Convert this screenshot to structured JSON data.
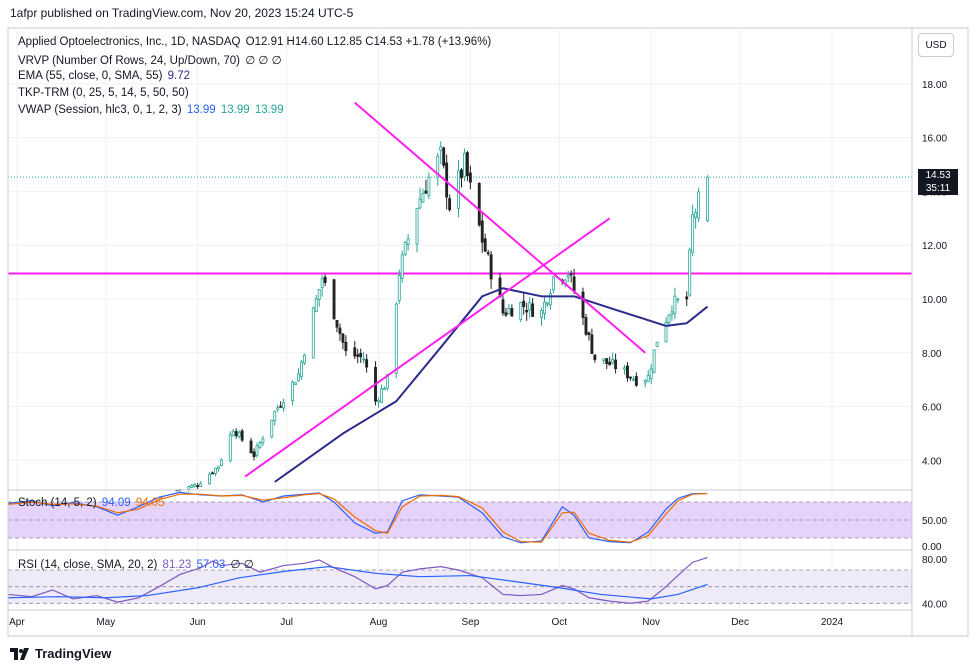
{
  "header": {
    "published": "1afpr published on TradingView.com, Nov 20, 2023 15:24 UTC-5"
  },
  "legend": {
    "line1_name": "Applied Optoelectronics, Inc., 1D, NASDAQ",
    "line1_values": "O12.91  H14.60  L12.85  C14.53  +1.78 (+13.96%)",
    "line2": "VRVP (Number Of Rows, 24, Up/Down, 70)",
    "line3_name": "EMA (55, close, 0, SMA, 55)",
    "line3_value": "9.72",
    "line4": "TKP-TRM  (0, 25, 5, 14, 5, 50, 50)",
    "line5_name": "VWAP (Session, hlc3, 0, 1, 2, 3)",
    "line5_v1": "13.99",
    "line5_v2": "13.99",
    "line5_v3": "13.99",
    "hidden_marks": "∅ ∅ ∅"
  },
  "stoch_legend": {
    "name": "Stoch (14, 5, 2)",
    "k": "94.09",
    "d": "94.05"
  },
  "rsi_legend": {
    "name": "RSI (14, close, SMA, 20, 2)",
    "rsi": "81.23",
    "ma": "57.03",
    "marks": "∅ ∅"
  },
  "currency": "USD",
  "last_price": {
    "price": "14.53",
    "countdown": "35:11"
  },
  "footer": {
    "brand": "TradingView",
    "logo_icon": "tradingview-logo-icon"
  },
  "colors": {
    "up": "#26a69a",
    "down": "#222222",
    "trend": "#ff1ff0",
    "ema": "#2c2c8c",
    "stoch_k": "#2962ff",
    "stoch_d": "#ef6c00",
    "rsi": "#7e57c2",
    "rsi_ma": "#2962ff",
    "stoch_band": "#e6d3fb",
    "rsi_band": "#efeaf7"
  },
  "chart_data": [
    {
      "type": "candlestick",
      "title": "Applied Optoelectronics, Inc., 1D, NASDAQ",
      "ylim": [
        2.9,
        20.0
      ],
      "y_ticks": [
        "4.00",
        "6.00",
        "8.00",
        "10.00",
        "12.00",
        "14.00",
        "16.00",
        "18.00"
      ],
      "x_ticks": [
        "Apr",
        "May",
        "Jun",
        "Jul",
        "Aug",
        "Sep",
        "Oct",
        "Nov",
        "Dec",
        "2024"
      ],
      "x_tick_dates": [
        "2023-04-01",
        "2023-05-01",
        "2023-06-01",
        "2023-07-01",
        "2023-08-01",
        "2023-09-01",
        "2023-10-01",
        "2023-11-01",
        "2023-12-01",
        "2024-01-01"
      ],
      "x_range": [
        "2023-03-29",
        "2024-01-28"
      ],
      "close_anchors": [
        [
          "2023-05-25",
          2.9
        ],
        [
          "2023-06-01",
          3.1
        ],
        [
          "2023-06-08",
          3.8
        ],
        [
          "2023-06-13",
          5.2
        ],
        [
          "2023-06-20",
          4.2
        ],
        [
          "2023-06-27",
          5.8
        ],
        [
          "2023-07-05",
          7.2
        ],
        [
          "2023-07-10",
          9.5
        ],
        [
          "2023-07-13",
          10.8
        ],
        [
          "2023-07-17",
          9.5
        ],
        [
          "2023-07-21",
          8.0
        ],
        [
          "2023-07-27",
          7.8
        ],
        [
          "2023-07-31",
          6.2
        ],
        [
          "2023-08-04",
          7.0
        ],
        [
          "2023-08-08",
          11.0
        ],
        [
          "2023-08-14",
          13.5
        ],
        [
          "2023-08-18",
          14.5
        ],
        [
          "2023-08-22",
          15.3
        ],
        [
          "2023-08-25",
          13.5
        ],
        [
          "2023-08-30",
          15.0
        ],
        [
          "2023-09-05",
          12.2
        ],
        [
          "2023-09-12",
          9.5
        ],
        [
          "2023-09-18",
          9.8
        ],
        [
          "2023-09-25",
          9.5
        ],
        [
          "2023-09-29",
          10.8
        ],
        [
          "2023-10-04",
          11.0
        ],
        [
          "2023-10-10",
          8.9
        ],
        [
          "2023-10-13",
          7.8
        ],
        [
          "2023-10-20",
          7.5
        ],
        [
          "2023-10-27",
          7.0
        ],
        [
          "2023-10-31",
          7.1
        ],
        [
          "2023-11-03",
          8.5
        ],
        [
          "2023-11-08",
          9.8
        ],
        [
          "2023-11-13",
          10.0
        ],
        [
          "2023-11-15",
          13.0
        ],
        [
          "2023-11-20",
          14.53
        ]
      ],
      "last_ohlc": {
        "open": 12.91,
        "high": 14.6,
        "low": 12.85,
        "close": 14.53
      },
      "ema_55": [
        [
          "2023-06-27",
          3.2
        ],
        [
          "2023-07-20",
          5.0
        ],
        [
          "2023-08-07",
          6.2
        ],
        [
          "2023-08-22",
          8.2
        ],
        [
          "2023-09-05",
          10.1
        ],
        [
          "2023-09-12",
          10.4
        ],
        [
          "2023-09-25",
          10.1
        ],
        [
          "2023-10-06",
          10.1
        ],
        [
          "2023-10-20",
          9.6
        ],
        [
          "2023-11-06",
          9.0
        ],
        [
          "2023-11-13",
          9.1
        ],
        [
          "2023-11-20",
          9.72
        ]
      ],
      "horizontal_line": 10.95,
      "trend_lines": [
        [
          [
            "2023-07-24",
            17.3
          ],
          [
            "2023-10-30",
            8.0
          ]
        ],
        [
          [
            "2023-06-17",
            3.4
          ],
          [
            "2023-10-18",
            13.0
          ]
        ]
      ],
      "last_price_line": 14.53
    },
    {
      "type": "line",
      "title": "Stoch (14, 5, 2)",
      "ylim": [
        0,
        100
      ],
      "y_ticks": [
        "50.00",
        "0.00"
      ],
      "band": [
        20,
        80
      ],
      "series": [
        {
          "name": "%K",
          "value": 94.09,
          "points": [
            [
              "2023-03-29",
              78
            ],
            [
              "2023-04-06",
              82
            ],
            [
              "2023-04-13",
              74
            ],
            [
              "2023-04-20",
              79
            ],
            [
              "2023-04-28",
              72
            ],
            [
              "2023-05-05",
              58
            ],
            [
              "2023-05-12",
              72
            ],
            [
              "2023-05-19",
              88
            ],
            [
              "2023-05-26",
              96
            ],
            [
              "2023-06-02",
              92
            ],
            [
              "2023-06-09",
              90
            ],
            [
              "2023-06-16",
              92
            ],
            [
              "2023-06-23",
              80
            ],
            [
              "2023-06-30",
              90
            ],
            [
              "2023-07-07",
              93
            ],
            [
              "2023-07-12",
              95
            ],
            [
              "2023-07-17",
              80
            ],
            [
              "2023-07-24",
              45
            ],
            [
              "2023-07-31",
              28
            ],
            [
              "2023-08-04",
              30
            ],
            [
              "2023-08-09",
              82
            ],
            [
              "2023-08-15",
              92
            ],
            [
              "2023-08-22",
              90
            ],
            [
              "2023-08-28",
              88
            ],
            [
              "2023-09-05",
              62
            ],
            [
              "2023-09-12",
              22
            ],
            [
              "2023-09-18",
              12
            ],
            [
              "2023-09-25",
              15
            ],
            [
              "2023-10-02",
              72
            ],
            [
              "2023-10-06",
              58
            ],
            [
              "2023-10-11",
              20
            ],
            [
              "2023-10-18",
              14
            ],
            [
              "2023-10-25",
              12
            ],
            [
              "2023-10-31",
              30
            ],
            [
              "2023-11-06",
              68
            ],
            [
              "2023-11-10",
              86
            ],
            [
              "2023-11-15",
              94
            ],
            [
              "2023-11-20",
              94.09
            ]
          ]
        },
        {
          "name": "%D",
          "value": 94.05,
          "points": [
            [
              "2023-03-29",
              76
            ],
            [
              "2023-04-06",
              80
            ],
            [
              "2023-04-13",
              76
            ],
            [
              "2023-04-20",
              77
            ],
            [
              "2023-04-28",
              73
            ],
            [
              "2023-05-05",
              62
            ],
            [
              "2023-05-12",
              68
            ],
            [
              "2023-05-19",
              84
            ],
            [
              "2023-05-26",
              93
            ],
            [
              "2023-06-02",
              93
            ],
            [
              "2023-06-09",
              90
            ],
            [
              "2023-06-16",
              91
            ],
            [
              "2023-06-23",
              83
            ],
            [
              "2023-06-30",
              87
            ],
            [
              "2023-07-07",
              92
            ],
            [
              "2023-07-12",
              94
            ],
            [
              "2023-07-17",
              85
            ],
            [
              "2023-07-24",
              55
            ],
            [
              "2023-07-31",
              32
            ],
            [
              "2023-08-04",
              28
            ],
            [
              "2023-08-09",
              72
            ],
            [
              "2023-08-15",
              90
            ],
            [
              "2023-08-22",
              91
            ],
            [
              "2023-08-28",
              89
            ],
            [
              "2023-09-05",
              70
            ],
            [
              "2023-09-12",
              30
            ],
            [
              "2023-09-18",
              14
            ],
            [
              "2023-09-25",
              13
            ],
            [
              "2023-10-02",
              62
            ],
            [
              "2023-10-06",
              63
            ],
            [
              "2023-10-11",
              28
            ],
            [
              "2023-10-18",
              16
            ],
            [
              "2023-10-25",
              13
            ],
            [
              "2023-10-31",
              24
            ],
            [
              "2023-11-06",
              60
            ],
            [
              "2023-11-10",
              82
            ],
            [
              "2023-11-15",
              93
            ],
            [
              "2023-11-20",
              94.05
            ]
          ]
        }
      ]
    },
    {
      "type": "line",
      "title": "RSI (14, close, SMA, 20, 2)",
      "ylim": [
        34,
        88
      ],
      "y_ticks": [
        "80.00",
        "40.00"
      ],
      "band": [
        40,
        70
      ],
      "series": [
        {
          "name": "RSI",
          "value": 81.23,
          "points": [
            [
              "2023-03-29",
              48
            ],
            [
              "2023-04-06",
              46
            ],
            [
              "2023-04-13",
              52
            ],
            [
              "2023-04-20",
              44
            ],
            [
              "2023-04-28",
              47
            ],
            [
              "2023-05-05",
              41
            ],
            [
              "2023-05-12",
              45
            ],
            [
              "2023-05-19",
              55
            ],
            [
              "2023-05-26",
              66
            ],
            [
              "2023-06-02",
              72
            ],
            [
              "2023-06-06",
              78
            ],
            [
              "2023-06-09",
              74
            ],
            [
              "2023-06-16",
              76
            ],
            [
              "2023-06-22",
              68
            ],
            [
              "2023-06-30",
              74
            ],
            [
              "2023-07-07",
              76
            ],
            [
              "2023-07-12",
              79
            ],
            [
              "2023-07-17",
              72
            ],
            [
              "2023-07-24",
              64
            ],
            [
              "2023-07-31",
              53
            ],
            [
              "2023-08-04",
              56
            ],
            [
              "2023-08-09",
              68
            ],
            [
              "2023-08-15",
              71
            ],
            [
              "2023-08-22",
              73
            ],
            [
              "2023-08-28",
              70
            ],
            [
              "2023-09-05",
              63
            ],
            [
              "2023-09-12",
              48
            ],
            [
              "2023-09-18",
              47
            ],
            [
              "2023-09-25",
              48
            ],
            [
              "2023-10-02",
              56
            ],
            [
              "2023-10-06",
              53
            ],
            [
              "2023-10-11",
              45
            ],
            [
              "2023-10-18",
              42
            ],
            [
              "2023-10-25",
              40
            ],
            [
              "2023-10-31",
              42
            ],
            [
              "2023-11-06",
              55
            ],
            [
              "2023-11-10",
              65
            ],
            [
              "2023-11-15",
              77
            ],
            [
              "2023-11-20",
              81.23
            ]
          ]
        },
        {
          "name": "RSI-based MA",
          "value": 57.03,
          "points": [
            [
              "2023-03-29",
              45
            ],
            [
              "2023-04-15",
              46
            ],
            [
              "2023-05-01",
              45
            ],
            [
              "2023-05-15",
              47
            ],
            [
              "2023-06-01",
              54
            ],
            [
              "2023-06-15",
              63
            ],
            [
              "2023-07-01",
              69
            ],
            [
              "2023-07-15",
              73
            ],
            [
              "2023-07-31",
              67
            ],
            [
              "2023-08-15",
              64
            ],
            [
              "2023-09-01",
              65
            ],
            [
              "2023-09-15",
              60
            ],
            [
              "2023-10-01",
              54
            ],
            [
              "2023-10-15",
              48
            ],
            [
              "2023-11-01",
              44
            ],
            [
              "2023-11-10",
              48
            ],
            [
              "2023-11-20",
              57.03
            ]
          ]
        }
      ]
    }
  ]
}
